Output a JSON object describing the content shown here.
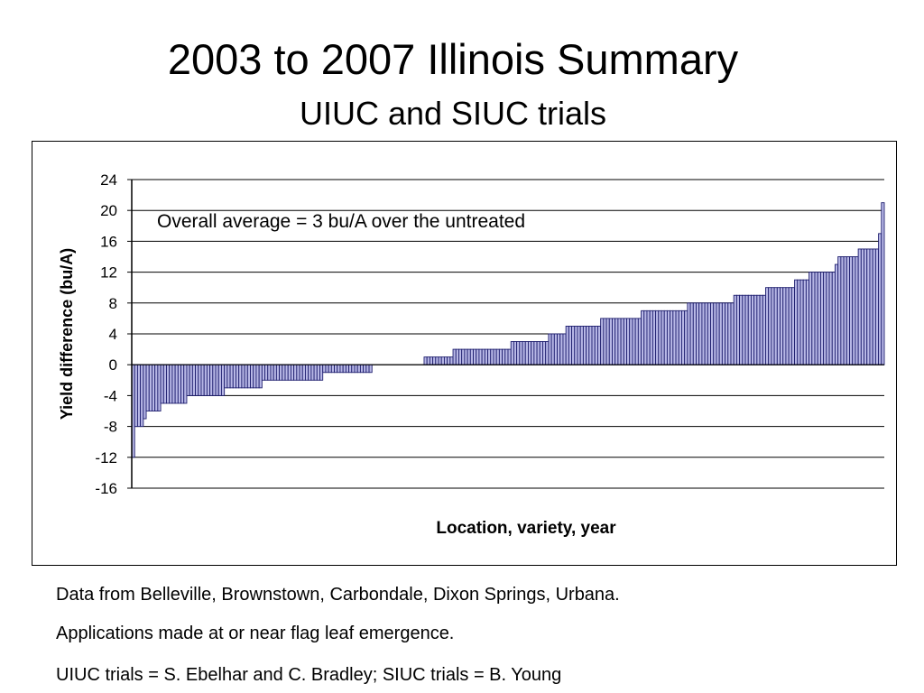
{
  "slide": {
    "title": "2003 to 2007 Illinois Summary",
    "subtitle": "UIUC and SIUC trials",
    "footnotes": [
      "Data from Belleville, Brownstown, Carbondale, Dixon Springs, Urbana.",
      "Applications made at or near flag leaf emergence.",
      "UIUC trials = S. Ebelhar and C. Bradley; SIUC trials = B. Young"
    ]
  },
  "chart_data": {
    "type": "bar",
    "xlabel": "Location, variety, year",
    "ylabel": "Yield difference (bu/A)",
    "annotation": "Overall average = 3 bu/A over the untreated",
    "ylim": [
      -16,
      24
    ],
    "yticks": [
      24,
      20,
      16,
      12,
      8,
      4,
      0,
      -4,
      -8,
      -12,
      -16
    ],
    "grid": true,
    "bar_color": "#1e1e6e",
    "bar_highlight": "#b8b8e6",
    "values": [
      -12,
      -8,
      -8,
      -8,
      -7,
      -6,
      -6,
      -6,
      -6,
      -6,
      -5,
      -5,
      -5,
      -5,
      -5,
      -5,
      -5,
      -5,
      -5,
      -4,
      -4,
      -4,
      -4,
      -4,
      -4,
      -4,
      -4,
      -4,
      -4,
      -4,
      -4,
      -4,
      -3,
      -3,
      -3,
      -3,
      -3,
      -3,
      -3,
      -3,
      -3,
      -3,
      -3,
      -3,
      -3,
      -2,
      -2,
      -2,
      -2,
      -2,
      -2,
      -2,
      -2,
      -2,
      -2,
      -2,
      -2,
      -2,
      -2,
      -2,
      -2,
      -2,
      -2,
      -2,
      -2,
      -2,
      -1,
      -1,
      -1,
      -1,
      -1,
      -1,
      -1,
      -1,
      -1,
      -1,
      -1,
      -1,
      -1,
      -1,
      -1,
      -1,
      -1,
      0,
      0,
      0,
      0,
      0,
      0,
      0,
      0,
      0,
      0,
      0,
      0,
      0,
      0,
      0,
      0,
      0,
      0,
      1,
      1,
      1,
      1,
      1,
      1,
      1,
      1,
      1,
      1,
      2,
      2,
      2,
      2,
      2,
      2,
      2,
      2,
      2,
      2,
      2,
      2,
      2,
      2,
      2,
      2,
      2,
      2,
      2,
      2,
      3,
      3,
      3,
      3,
      3,
      3,
      3,
      3,
      3,
      3,
      3,
      3,
      3,
      4,
      4,
      4,
      4,
      4,
      4,
      5,
      5,
      5,
      5,
      5,
      5,
      5,
      5,
      5,
      5,
      5,
      5,
      6,
      6,
      6,
      6,
      6,
      6,
      6,
      6,
      6,
      6,
      6,
      6,
      6,
      6,
      7,
      7,
      7,
      7,
      7,
      7,
      7,
      7,
      7,
      7,
      7,
      7,
      7,
      7,
      7,
      7,
      8,
      8,
      8,
      8,
      8,
      8,
      8,
      8,
      8,
      8,
      8,
      8,
      8,
      8,
      8,
      8,
      9,
      9,
      9,
      9,
      9,
      9,
      9,
      9,
      9,
      9,
      9,
      10,
      10,
      10,
      10,
      10,
      10,
      10,
      10,
      10,
      10,
      11,
      11,
      11,
      11,
      11,
      12,
      12,
      12,
      12,
      12,
      12,
      12,
      12,
      12,
      13,
      14,
      14,
      14,
      14,
      14,
      14,
      14,
      15,
      15,
      15,
      15,
      15,
      15,
      15,
      17,
      21
    ]
  }
}
